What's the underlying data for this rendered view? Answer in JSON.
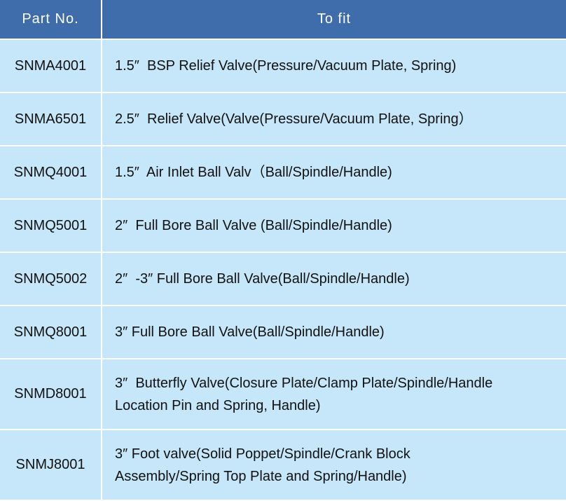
{
  "header": {
    "part_no": "Part No.",
    "to_fit": "To fit"
  },
  "colors": {
    "header_bg": "#3f6dab",
    "row_bg": "#c6e6f9",
    "grid": "#ffffff"
  },
  "rows": [
    {
      "part": "SNMA4001",
      "fit": [
        "1.5″  BSP Relief Valve(Pressure/Vacuum Plate, Spring)"
      ]
    },
    {
      "part": "SNMA6501",
      "fit": [
        "2.5″  Relief Valve(Valve(Pressure/Vacuum Plate, Spring）"
      ]
    },
    {
      "part": "SNMQ4001",
      "fit": [
        "1.5″  Air Inlet Ball Valv（Ball/Spindle/Handle)"
      ]
    },
    {
      "part": "SNMQ5001",
      "fit": [
        "2″  Full Bore Ball Valve (Ball/Spindle/Handle)"
      ]
    },
    {
      "part": "SNMQ5002",
      "fit": [
        "2″  -3″ Full Bore Ball Valve(Ball/Spindle/Handle)"
      ]
    },
    {
      "part": "SNMQ8001",
      "fit": [
        "3″ Full Bore Ball Valve(Ball/Spindle/Handle)"
      ]
    },
    {
      "part": "SNMD8001",
      "fit": [
        "3″  Butterfly Valve(Closure Plate/Clamp Plate/Spindle/Handle",
        "Location Pin and Spring, Handle)"
      ]
    },
    {
      "part": "SNMJ8001",
      "fit": [
        "3″ Foot valve(Solid Poppet/Spindle/Crank Block",
        "Assembly/Spring Top Plate and Spring/Handle)"
      ]
    }
  ]
}
